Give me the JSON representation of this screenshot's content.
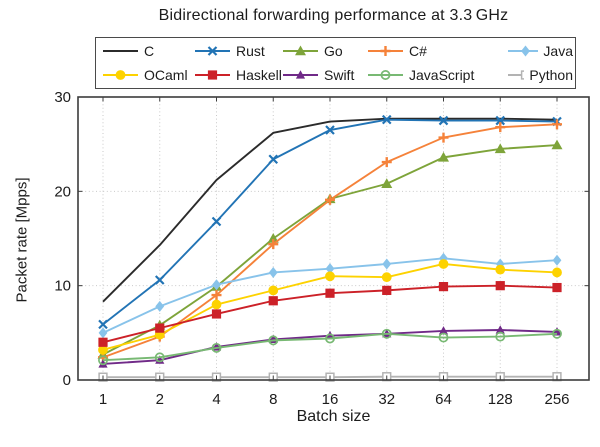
{
  "title": "Bidirectional forwarding performance at 3.3 GHz",
  "xlabel": "Batch size",
  "ylabel": "Packet rate [Mpps]",
  "chart_data": {
    "type": "line",
    "x_scale": "log2",
    "categories": [
      1,
      2,
      4,
      8,
      16,
      32,
      64,
      128,
      256
    ],
    "ylim": [
      0,
      30
    ],
    "yticks": [
      0,
      10,
      20,
      30
    ],
    "grid": true,
    "legend_position": "top",
    "series": [
      {
        "name": "C",
        "color": "#2b2b2b",
        "marker": "none",
        "values": [
          8.3,
          14.3,
          21.2,
          26.2,
          27.4,
          27.7,
          27.7,
          27.7,
          27.6
        ]
      },
      {
        "name": "Rust",
        "color": "#2274b5",
        "marker": "x",
        "values": [
          5.9,
          10.6,
          16.8,
          23.4,
          26.5,
          27.6,
          27.5,
          27.5,
          27.4
        ]
      },
      {
        "name": "Go",
        "color": "#7ea43a",
        "marker": "triangle",
        "values": [
          2.7,
          5.8,
          9.9,
          15.0,
          19.2,
          20.8,
          23.6,
          24.5,
          24.9
        ]
      },
      {
        "name": "C#",
        "color": "#f5823a",
        "marker": "plus",
        "values": [
          2.4,
          4.6,
          9.0,
          14.4,
          19.1,
          23.1,
          25.7,
          26.8,
          27.1
        ]
      },
      {
        "name": "Java",
        "color": "#88c3ea",
        "marker": "diamond",
        "values": [
          5.0,
          7.8,
          10.1,
          11.4,
          11.8,
          12.3,
          12.9,
          12.3,
          12.7
        ]
      },
      {
        "name": "OCaml",
        "color": "#fdd200",
        "marker": "circle",
        "values": [
          3.2,
          4.8,
          8.0,
          9.5,
          11.0,
          10.9,
          12.3,
          11.7,
          11.4
        ]
      },
      {
        "name": "Haskell",
        "color": "#cc2128",
        "marker": "square",
        "values": [
          4.0,
          5.5,
          7.0,
          8.4,
          9.2,
          9.5,
          9.9,
          10.0,
          9.8
        ]
      },
      {
        "name": "Swift",
        "color": "#702a88",
        "marker": "triangle-sm",
        "values": [
          1.7,
          2.1,
          3.5,
          4.3,
          4.7,
          4.9,
          5.2,
          5.3,
          5.1
        ]
      },
      {
        "name": "JavaScript",
        "color": "#78b973",
        "marker": "circle-open",
        "values": [
          2.1,
          2.4,
          3.4,
          4.2,
          4.4,
          4.9,
          4.5,
          4.6,
          4.9
        ]
      },
      {
        "name": "Python",
        "color": "#b3b3b3",
        "marker": "square-open",
        "values": [
          0.3,
          0.3,
          0.3,
          0.3,
          0.3,
          0.35,
          0.35,
          0.35,
          0.35
        ]
      }
    ]
  }
}
